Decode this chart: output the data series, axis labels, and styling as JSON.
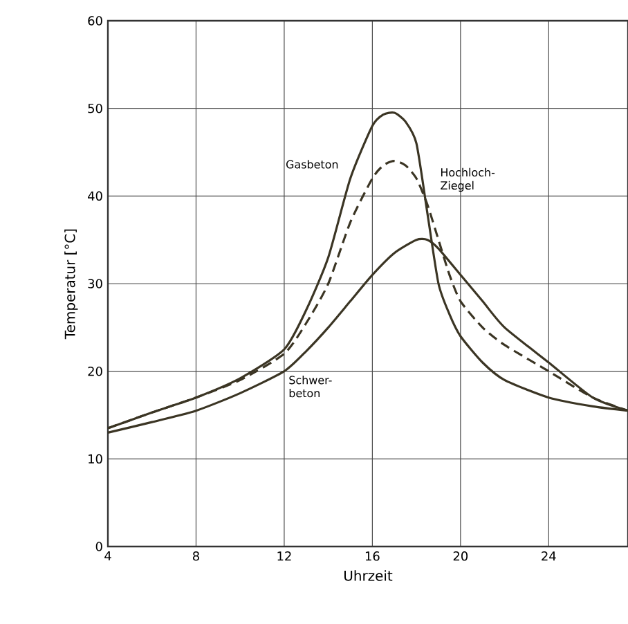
{
  "chart_data": {
    "type": "line",
    "xlabel": "Uhrzeit",
    "ylabel": "Temperatur [°C]",
    "xlim": [
      4,
      27.6
    ],
    "ylim": [
      0,
      60
    ],
    "xticks": [
      4,
      8,
      12,
      16,
      20,
      24
    ],
    "yticks": [
      0,
      10,
      20,
      30,
      40,
      50,
      60
    ],
    "grid": true,
    "marker": "none",
    "series": [
      {
        "name": "Gasbeton",
        "color": "#3b3524",
        "line_style": "solid",
        "x": [
          4,
          6,
          8,
          10,
          12,
          13,
          14,
          15,
          16,
          16.5,
          17,
          17.5,
          18,
          18.5,
          19,
          19.5,
          20,
          21,
          22,
          24,
          26,
          27.6
        ],
        "values": [
          13.5,
          15.3,
          17,
          19.2,
          22.5,
          27,
          33,
          42,
          48,
          49.3,
          49.5,
          48.5,
          46,
          38,
          30,
          26.5,
          24,
          21,
          19,
          17,
          16,
          15.5
        ]
      },
      {
        "name": "Hochloch-Ziegel",
        "color": "#3b3524",
        "line_style": "dashed",
        "x": [
          4,
          6,
          8,
          10,
          12,
          13,
          14,
          15,
          16,
          16.5,
          17,
          17.5,
          18,
          18.5,
          19,
          19.5,
          20,
          21,
          22,
          24,
          26,
          27.6
        ],
        "values": [
          13.5,
          15.3,
          17,
          19,
          22,
          25.5,
          30,
          37,
          42,
          43.5,
          44,
          43.5,
          42,
          39,
          35,
          31,
          28,
          25,
          23,
          20,
          17,
          15.5
        ]
      },
      {
        "name": "Schwer-beton",
        "color": "#3b3524",
        "line_style": "solid",
        "x": [
          4,
          6,
          8,
          10,
          12,
          13,
          14,
          15,
          16,
          17,
          18,
          18.5,
          19,
          20,
          21,
          22,
          24,
          26,
          27.6
        ],
        "values": [
          13,
          14.2,
          15.5,
          17.5,
          20,
          22.3,
          25,
          28,
          31,
          33.5,
          35,
          35,
          34,
          31,
          28,
          25,
          21,
          17,
          15.5
        ]
      }
    ]
  }
}
